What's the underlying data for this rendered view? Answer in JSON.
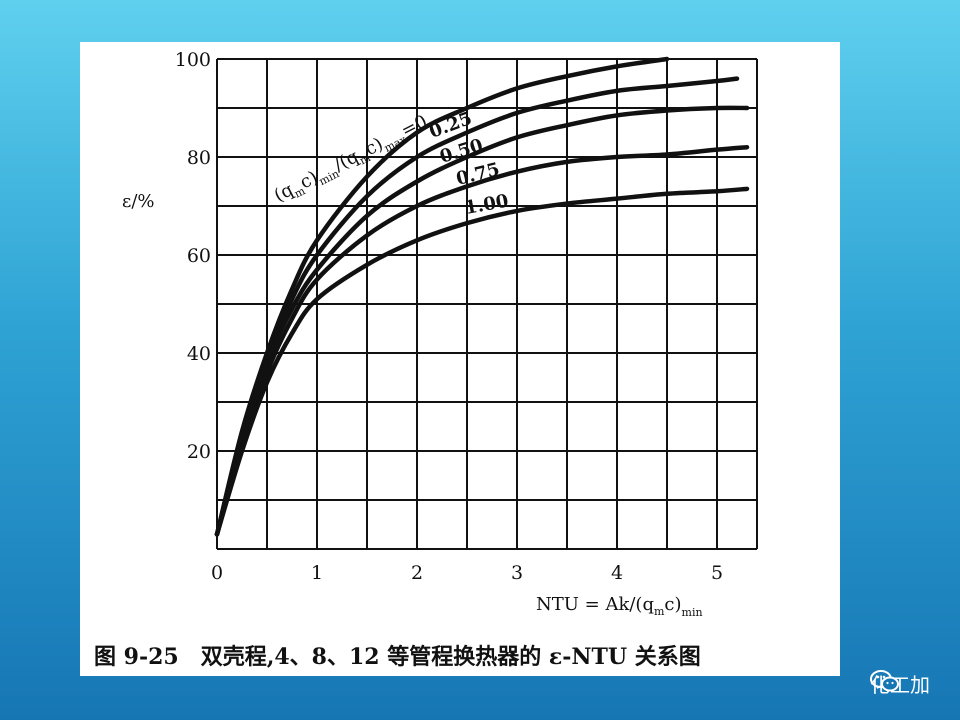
{
  "chart_data": {
    "type": "line",
    "ylabel": "ε/%",
    "xlabel": "NTU = Ak/(q",
    "xlabel_sub_m": "m",
    "xlabel_tail": "c)",
    "xlabel_sub_min": "min",
    "param_label": "(q",
    "param_label_sub_m": "m",
    "param_label_mid": "c)",
    "param_label_sub_min": "min",
    "param_label_mid2": "/(q",
    "param_label_sub_m2": "m",
    "param_label_mid3": "c)",
    "param_label_sub_max": "max",
    "param_label_tail": "=0",
    "xlim": [
      0,
      5.4
    ],
    "ylim": [
      0,
      100
    ],
    "x_ticks": [
      "0",
      "1",
      "2",
      "3",
      "4",
      "5"
    ],
    "y_ticks": [
      "20",
      "40",
      "60",
      "80",
      "100"
    ],
    "grid": true,
    "series": [
      {
        "name": "0",
        "x": [
          0,
          0.25,
          0.5,
          0.75,
          1.0,
          1.5,
          2.0,
          2.5,
          3.0,
          3.5,
          4.0,
          4.5
        ],
        "values": [
          3,
          24,
          40,
          53,
          63,
          76,
          85,
          90,
          94,
          96.5,
          98.5,
          100
        ]
      },
      {
        "name": "0.25",
        "x": [
          0,
          0.25,
          0.5,
          0.75,
          1.0,
          1.5,
          2.0,
          2.5,
          3.0,
          3.5,
          4.0,
          4.5,
          5.0,
          5.2
        ],
        "values": [
          3,
          23,
          39,
          51,
          60,
          72,
          80,
          85,
          89,
          91.5,
          93.5,
          94.5,
          95.5,
          96
        ]
      },
      {
        "name": "0.50",
        "x": [
          0,
          0.25,
          0.5,
          0.75,
          1.0,
          1.5,
          2.0,
          2.5,
          3.0,
          3.5,
          4.0,
          4.5,
          5.0,
          5.3
        ],
        "values": [
          3,
          22,
          38,
          49,
          57,
          68,
          75,
          80,
          84,
          86.5,
          88.5,
          89.5,
          90,
          90
        ]
      },
      {
        "name": "0.75",
        "x": [
          0,
          0.25,
          0.5,
          0.75,
          1.0,
          1.5,
          2.0,
          2.5,
          3.0,
          3.5,
          4.0,
          4.5,
          5.0,
          5.3
        ],
        "values": [
          3,
          21,
          36,
          47,
          55,
          64,
          70,
          74,
          77,
          79,
          80,
          80.5,
          81.5,
          82
        ]
      },
      {
        "name": "1.00",
        "x": [
          0,
          0.25,
          0.5,
          0.75,
          1.0,
          1.5,
          2.0,
          2.5,
          3.0,
          3.5,
          4.0,
          4.5,
          5.0,
          5.3
        ],
        "values": [
          3,
          20,
          34,
          44,
          51,
          58,
          63,
          66.5,
          69,
          70.5,
          71.5,
          72.5,
          73,
          73.5
        ]
      }
    ],
    "curve_labels": [
      "0.25",
      "0.50",
      "0.75",
      "1.00"
    ],
    "caption": "图 9-25　双壳程,4、8、12 等管程换热器的 ε-NTU 关系图"
  },
  "watermark": {
    "text": "化工加",
    "icon": "wechat-icon"
  }
}
